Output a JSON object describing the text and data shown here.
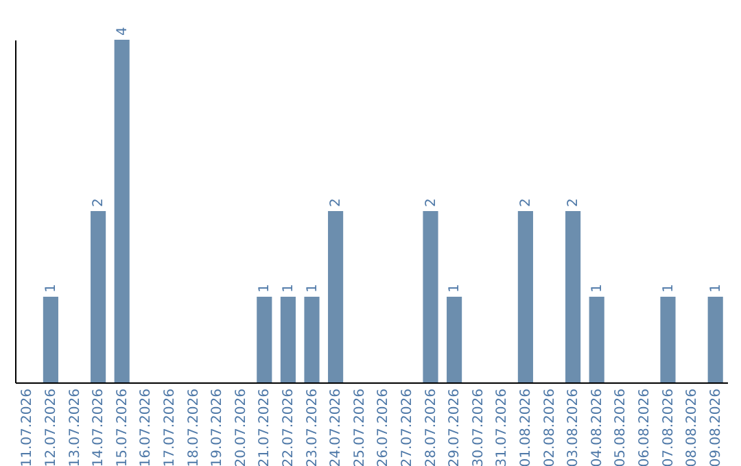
{
  "chart_data": {
    "type": "bar",
    "categories": [
      "11.07.2026",
      "12.07.2026",
      "13.07.2026",
      "14.07.2026",
      "15.07.2026",
      "16.07.2026",
      "17.07.2026",
      "18.07.2026",
      "19.07.2026",
      "20.07.2026",
      "21.07.2026",
      "22.07.2026",
      "23.07.2026",
      "24.07.2026",
      "25.07.2026",
      "26.07.2026",
      "27.07.2026",
      "28.07.2026",
      "29.07.2026",
      "30.07.2026",
      "31.07.2026",
      "01.08.2026",
      "02.08.2026",
      "03.08.2026",
      "04.08.2026",
      "05.08.2026",
      "06.08.2026",
      "07.08.2026",
      "08.08.2026",
      "09.08.2026"
    ],
    "values": [
      0,
      1,
      0,
      2,
      4,
      0,
      0,
      0,
      0,
      0,
      1,
      1,
      1,
      2,
      0,
      0,
      0,
      2,
      1,
      0,
      0,
      2,
      0,
      2,
      1,
      0,
      0,
      1,
      0,
      1
    ],
    "value_labels": [
      null,
      "1",
      null,
      "2",
      "4",
      null,
      null,
      null,
      null,
      null,
      "1",
      "1",
      "1",
      "2",
      null,
      null,
      null,
      "2",
      "1",
      null,
      null,
      "2",
      null,
      "2",
      "1",
      null,
      null,
      "1",
      null,
      "1"
    ],
    "color": "#6c8eae",
    "tick_labels": "x",
    "grid": false
  }
}
